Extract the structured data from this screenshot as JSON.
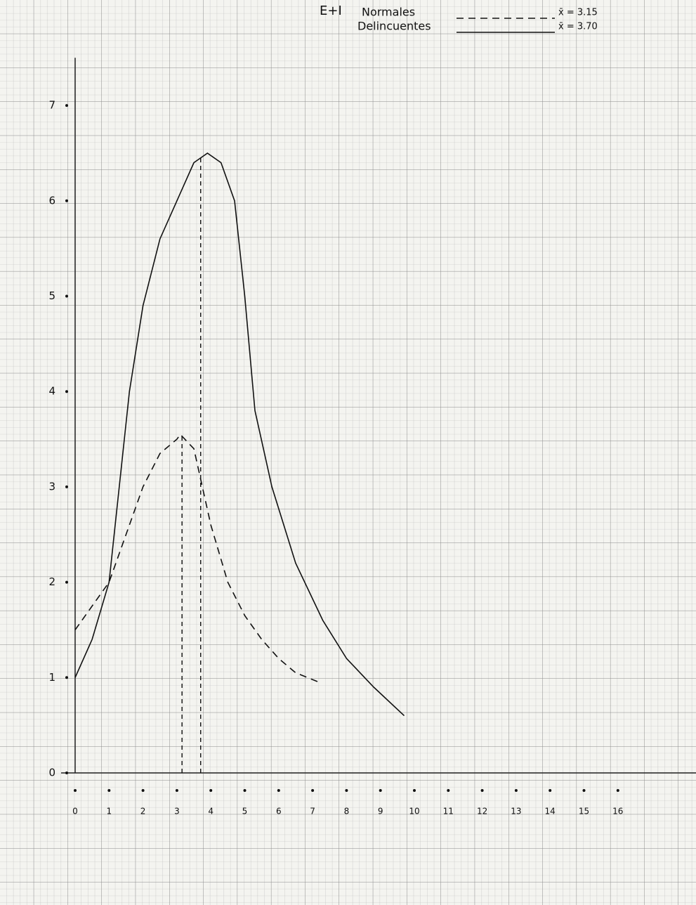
{
  "chart_data": {
    "type": "line",
    "title": "E+I",
    "series": [
      {
        "name": "Normales",
        "color": "#111111",
        "dash": true,
        "x": [
          0,
          0.5,
          1,
          1.5,
          2,
          2.5,
          3,
          3.1,
          3.5,
          4,
          4.5,
          5,
          5.5,
          6,
          6.5,
          7.2
        ],
        "values": [
          1.5,
          1.75,
          2.0,
          2.5,
          3.0,
          3.35,
          3.5,
          3.55,
          3.4,
          2.6,
          2.0,
          1.65,
          1.4,
          1.2,
          1.05,
          0.95
        ],
        "mean": {
          "value": 3.15,
          "label": "x̄ = 3.15"
        }
      },
      {
        "name": "Delincuentes",
        "color": "#111111",
        "dash": false,
        "x": [
          0,
          0.5,
          1,
          1.3,
          1.6,
          2,
          2.5,
          3,
          3.5,
          3.9,
          4.3,
          4.7,
          5,
          5.3,
          5.8,
          6.5,
          7.3,
          8,
          8.8,
          9.7
        ],
        "values": [
          1.0,
          1.4,
          2.0,
          3.0,
          4.0,
          4.9,
          5.6,
          6.0,
          6.4,
          6.5,
          6.4,
          6.0,
          5.0,
          3.8,
          3.0,
          2.2,
          1.6,
          1.2,
          0.9,
          0.6
        ],
        "mean": {
          "value": 3.7,
          "label": "x̄ = 3.70"
        }
      }
    ],
    "xlim": [
      0,
      18
    ],
    "xticks": [
      0,
      1,
      2,
      3,
      4,
      5,
      6,
      7,
      8,
      9,
      10,
      11,
      12,
      13,
      14,
      15,
      16
    ],
    "ylim": [
      0,
      7.5
    ],
    "yticks": [
      0,
      1,
      2,
      3,
      4,
      5,
      6,
      7
    ]
  }
}
